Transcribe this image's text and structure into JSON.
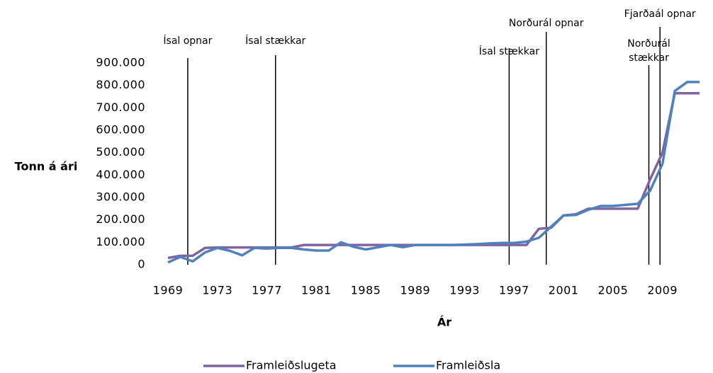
{
  "chart_data": {
    "type": "line",
    "y_label": "Tonn á ári",
    "x_label": "Ár",
    "x": [
      1969,
      1970,
      1971,
      1972,
      1973,
      1974,
      1975,
      1976,
      1977,
      1978,
      1979,
      1980,
      1981,
      1982,
      1983,
      1984,
      1985,
      1986,
      1987,
      1988,
      1989,
      1990,
      1991,
      1992,
      1993,
      1994,
      1995,
      1996,
      1997,
      1998,
      1999,
      2000,
      2001,
      2002,
      2003,
      2004,
      2005,
      2006,
      2007,
      2008,
      2009,
      2010,
      2011,
      2012
    ],
    "series": [
      {
        "name": "Framleiðslugeta",
        "color": "#8064a2",
        "values": [
          30000,
          40000,
          40000,
          75000,
          77000,
          77000,
          77000,
          77000,
          77000,
          77000,
          77000,
          88000,
          88000,
          88000,
          88000,
          88000,
          88000,
          88000,
          88000,
          88000,
          88000,
          88000,
          88000,
          88000,
          88000,
          88000,
          88000,
          88000,
          88000,
          88000,
          160000,
          165000,
          220000,
          225000,
          250000,
          250000,
          250000,
          250000,
          250000,
          380000,
          500000,
          765000,
          765000,
          765000
        ]
      },
      {
        "name": "Framleiðsla",
        "color": "#4f81bd",
        "values": [
          10000,
          35000,
          15000,
          55000,
          75000,
          62000,
          42000,
          75000,
          72000,
          75000,
          75000,
          68000,
          63000,
          63000,
          100000,
          80000,
          68000,
          78000,
          88000,
          78000,
          88000,
          88000,
          88000,
          88000,
          90000,
          92000,
          95000,
          97000,
          97000,
          103000,
          120000,
          170000,
          220000,
          222000,
          245000,
          262000,
          262000,
          267000,
          272000,
          330000,
          450000,
          775000,
          815000,
          815000
        ]
      }
    ],
    "xlim": [
      1969,
      2012
    ],
    "xticks": [
      1969,
      1973,
      1977,
      1981,
      1985,
      1989,
      1993,
      1997,
      2001,
      2005,
      2009
    ],
    "ylim": [
      0,
      900000
    ],
    "yticks": [
      0,
      {
        "value": 100000,
        "label": "100.000"
      },
      {
        "value": 200000,
        "label": "200.000"
      },
      {
        "value": 300000,
        "label": "300.000"
      },
      {
        "value": 400000,
        "label": "400.000"
      },
      {
        "value": 500000,
        "label": "500.000"
      },
      {
        "value": 600000,
        "label": "600.000"
      },
      {
        "value": 700000,
        "label": "700.000"
      },
      {
        "value": 800000,
        "label": "800.000"
      },
      {
        "value": 900000,
        "label": "900.000"
      }
    ],
    "grid": false,
    "legend": "bottom",
    "events": [
      {
        "x": 1970.6,
        "label": [
          "Ísal opnar"
        ]
      },
      {
        "x": 1977.7,
        "label": [
          "Ísal stækkar"
        ]
      },
      {
        "x": 1996.6,
        "label": [
          "Ísal stækkar"
        ]
      },
      {
        "x": 1999.6,
        "label": [
          "Norðurál opnar"
        ]
      },
      {
        "x": 2007.9,
        "label": [
          "Norðurál",
          "stækkar"
        ]
      },
      {
        "x": 2008.8,
        "label": [
          "Fjarðaál opnar"
        ]
      }
    ]
  }
}
